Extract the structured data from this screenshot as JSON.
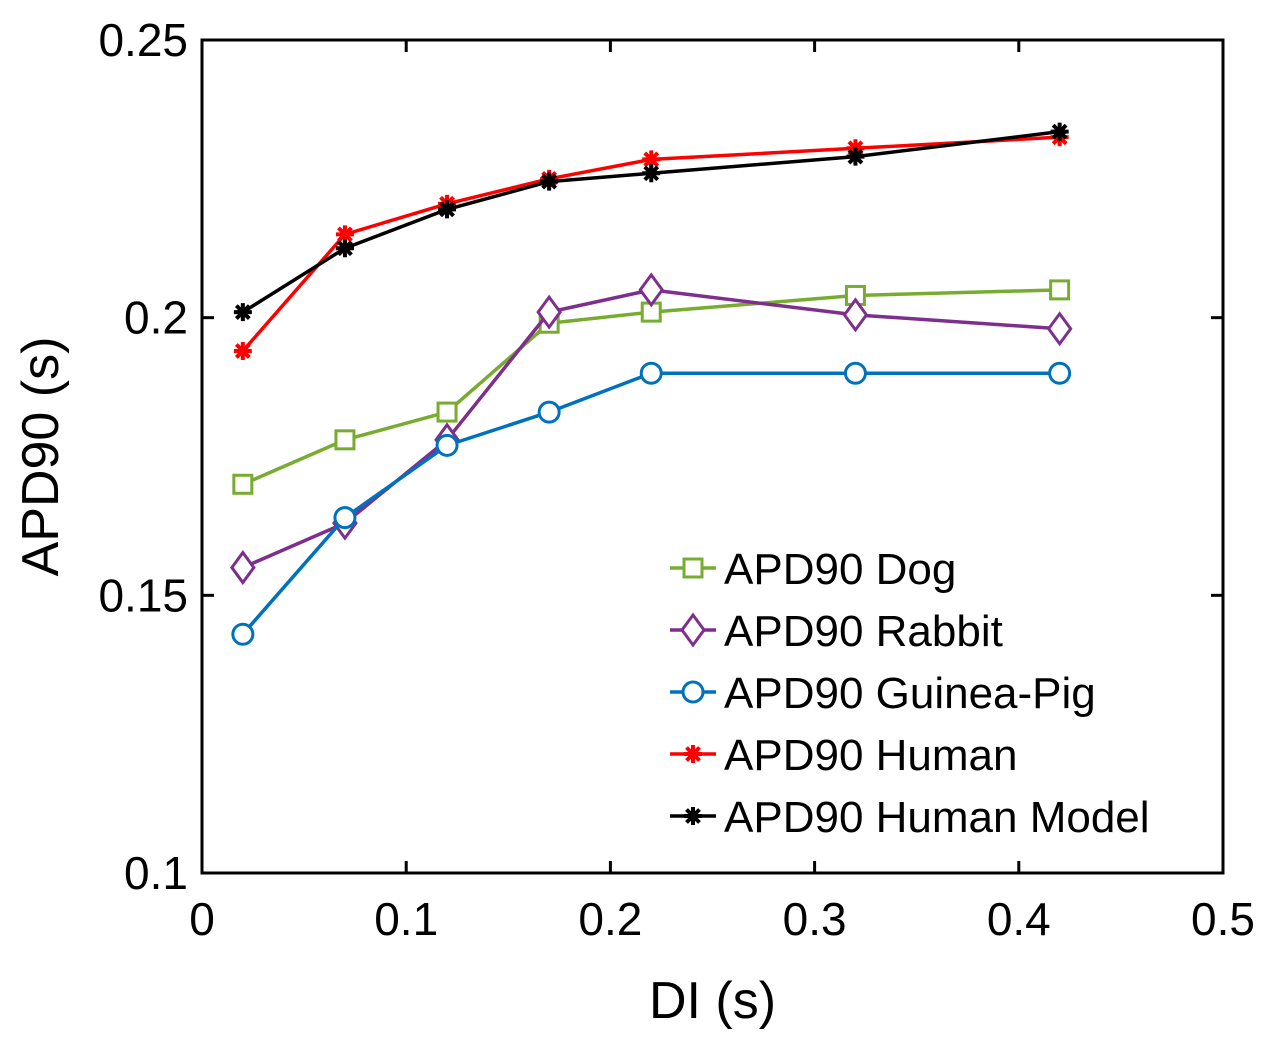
{
  "chart_data": {
    "type": "line",
    "title": "",
    "xlabel": "DI (s)",
    "ylabel": "APD90 (s)",
    "xlim": [
      0,
      0.5
    ],
    "ylim": [
      0.1,
      0.25
    ],
    "xticks": [
      0,
      0.1,
      0.2,
      0.3,
      0.4,
      0.5
    ],
    "xtick_labels": [
      "0",
      "0.1",
      "0.2",
      "0.3",
      "0.4",
      "0.5"
    ],
    "yticks": [
      0.1,
      0.15,
      0.2,
      0.25
    ],
    "ytick_labels": [
      "0.1",
      "0.15",
      "0.2",
      "0.25"
    ],
    "grid": false,
    "legend_position": "bottom-right",
    "x": [
      0.02,
      0.07,
      0.12,
      0.17,
      0.22,
      0.32,
      0.42
    ],
    "series": [
      {
        "name": "APD90 Dog",
        "color": "#77ac30",
        "marker": "square",
        "values": [
          0.17,
          0.178,
          0.183,
          0.199,
          0.201,
          0.204,
          0.205
        ]
      },
      {
        "name": "APD90 Rabbit",
        "color": "#7e2f8e",
        "marker": "diamond",
        "values": [
          0.155,
          0.163,
          0.178,
          0.201,
          0.205,
          0.2005,
          0.198
        ]
      },
      {
        "name": "APD90 Guinea-Pig",
        "color": "#0072bd",
        "marker": "circle",
        "values": [
          0.143,
          0.164,
          0.177,
          0.183,
          0.19,
          0.19,
          0.19
        ]
      },
      {
        "name": "APD90 Human",
        "color": "#ff0000",
        "marker": "asterisk",
        "values": [
          0.194,
          0.215,
          0.2205,
          0.225,
          0.2285,
          0.2305,
          0.2325
        ]
      },
      {
        "name": "APD90 Human Model",
        "color": "#000000",
        "marker": "asterisk",
        "values": [
          0.201,
          0.2125,
          0.2195,
          0.2245,
          0.226,
          0.229,
          0.2335
        ]
      }
    ]
  }
}
